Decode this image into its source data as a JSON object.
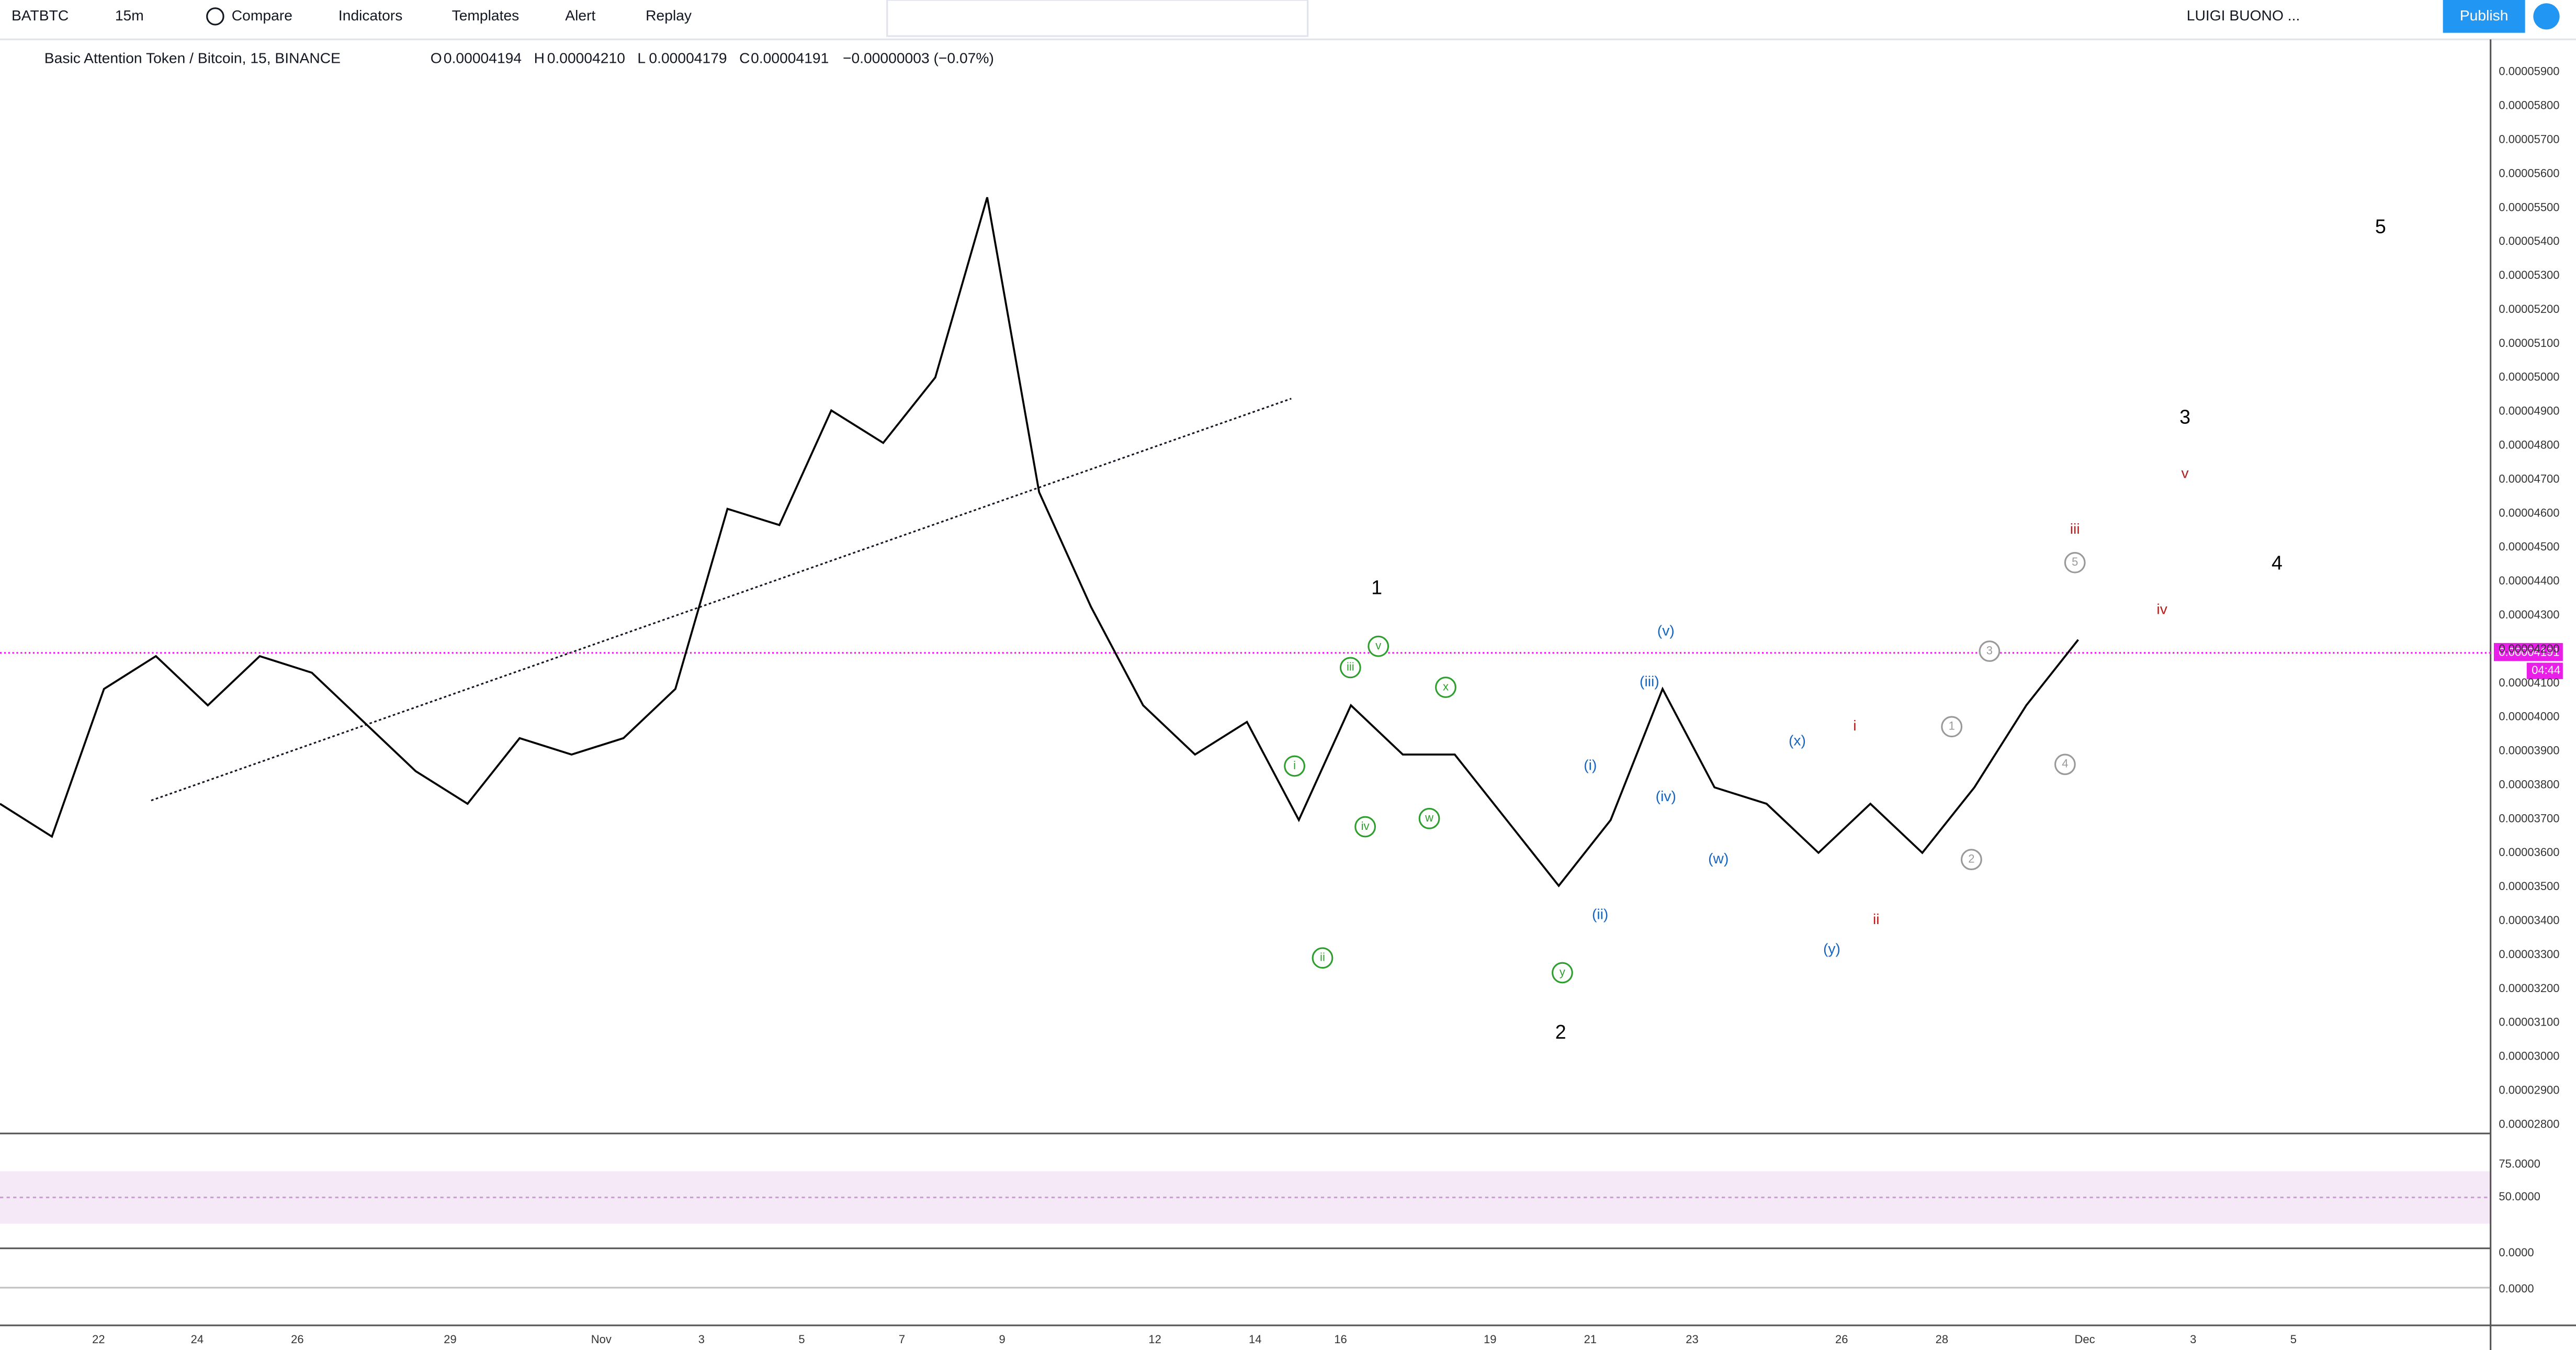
{
  "toolbar": {
    "symbol": "BATBTC",
    "interval": "15m",
    "compare": "Compare",
    "indicators": "Indicators",
    "templates": "Templates",
    "alert": "Alert",
    "replay": "Replay",
    "user": "LUIGI BUONO ...",
    "publish": "Publish"
  },
  "legend": {
    "title": "Basic Attention Token / Bitcoin, 15, BINANCE",
    "o": "O",
    "open": "0.00004194",
    "h": "H",
    "high": "0.00004210",
    "l": "L",
    "low": "0.00004179",
    "c": "C",
    "close": "0.00004191",
    "change": "−0.00000003 (−0.07%)"
  },
  "price_axis": {
    "ticks": [
      "0.00005900",
      "0.00005800",
      "0.00005700",
      "0.00005600",
      "0.00005500",
      "0.00005400",
      "0.00005300",
      "0.00005200",
      "0.00005100",
      "0.00005000",
      "0.00004900",
      "0.00004800",
      "0.00004700",
      "0.00004600",
      "0.00004500",
      "0.00004400",
      "0.00004300",
      "0.00004200",
      "0.00004100",
      "0.00004000",
      "0.00003900",
      "0.00003800",
      "0.00003700",
      "0.00003600",
      "0.00003500",
      "0.00003400",
      "0.00003300",
      "0.00003200",
      "0.00003100",
      "0.00003000",
      "0.00002900",
      "0.00002800"
    ],
    "last_price": "0.00004191",
    "countdown": "04:44"
  },
  "price": {
    "ylim": [
      2.78e-05,
      5.98e-05
    ],
    "values": [
      3.747e-05,
      3.65e-05,
      4.085e-05,
      4.182e-05,
      4.037e-05,
      4.182e-05,
      4.133e-05,
      3.988e-05,
      3.843e-05,
      3.747e-05,
      3.94e-05,
      3.892e-05,
      3.94e-05,
      4.085e-05,
      4.616e-05,
      4.568e-05,
      4.906e-05,
      4.81e-05,
      5.003e-05,
      5.534e-05,
      4.665e-05,
      4.327e-05,
      4.037e-05,
      3.892e-05,
      3.988e-05,
      3.699e-05,
      4.037e-05,
      3.892e-05,
      3.892e-05,
      3.699e-05,
      3.505e-05,
      3.699e-05,
      4.085e-05,
      3.795e-05,
      3.747e-05,
      3.602e-05,
      3.747e-05,
      3.602e-05,
      3.795e-05,
      4.037e-05,
      4.23e-05
    ]
  },
  "rsi_axis": {
    "ticks": [
      "75.0000",
      "50.0000"
    ]
  },
  "macd_axis": {
    "ticks": [
      "0.0000",
      "0.0000"
    ]
  },
  "date_axis": {
    "labels": [
      "22",
      "24",
      "26",
      "29",
      "Nov",
      "3",
      "5",
      "7",
      "9",
      "12",
      "14",
      "16",
      "19",
      "21",
      "23",
      "26",
      "28",
      "Dec",
      "3",
      "5"
    ]
  },
  "wave_labels": [
    "1",
    "2",
    "3",
    "4",
    "5",
    "iii",
    "v",
    "iv",
    "i",
    "ii",
    "(v)",
    "(iii)",
    "(i)",
    "(iv)",
    "(ii)",
    "(w)",
    "(x)",
    "(y)",
    "v",
    "iii",
    "x",
    "i",
    "iv",
    "w",
    "ii",
    "y",
    "5",
    "3",
    "1",
    "4",
    "2"
  ]
}
